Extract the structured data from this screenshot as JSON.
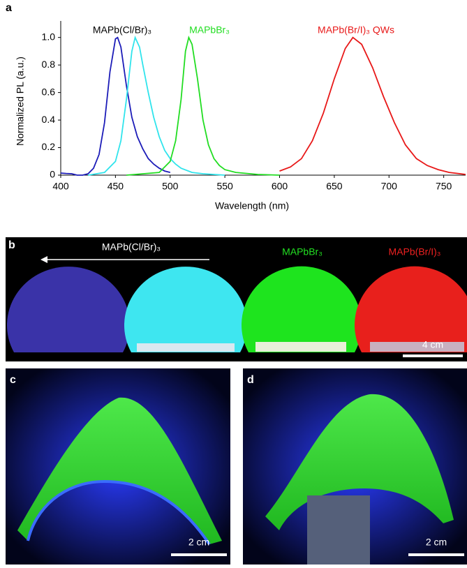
{
  "chart_data": {
    "type": "line",
    "xlabel": "Wavelength (nm)",
    "ylabel": "Normalized PL (a.u.)",
    "xlim": [
      400,
      770
    ],
    "ylim": [
      0,
      1.12
    ],
    "xticks": [
      400,
      450,
      500,
      550,
      600,
      650,
      700,
      750
    ],
    "yticks": [
      0,
      0.2,
      0.4,
      0.6,
      0.8,
      {
        "value": 1,
        "label": "1.0"
      }
    ],
    "annotations": [
      "MAPb(Cl/Br)₃",
      "MAPbBr₃",
      "MAPb(Br/I)₃ QWs"
    ],
    "series": [
      {
        "color": "#1c1cb8",
        "x": [
          400,
          405,
          410,
          415,
          420,
          425,
          430,
          435,
          440,
          445,
          450,
          452,
          455,
          460,
          465,
          470,
          475,
          480,
          485,
          490,
          495,
          500
        ],
        "values": [
          0.015,
          0.012,
          0.01,
          0.0,
          0.0,
          0.01,
          0.05,
          0.15,
          0.38,
          0.75,
          0.99,
          1.0,
          0.93,
          0.65,
          0.42,
          0.28,
          0.19,
          0.12,
          0.08,
          0.05,
          0.03,
          0.02
        ]
      },
      {
        "color": "#30e4ec",
        "x": [
          425,
          440,
          450,
          455,
          460,
          465,
          468,
          472,
          475,
          480,
          485,
          490,
          495,
          500,
          505,
          510,
          520,
          530,
          550
        ],
        "values": [
          0.0,
          0.02,
          0.1,
          0.25,
          0.55,
          0.9,
          1.0,
          0.93,
          0.8,
          0.6,
          0.42,
          0.28,
          0.18,
          0.12,
          0.08,
          0.05,
          0.02,
          0.01,
          0.0
        ]
      },
      {
        "color": "#22dd22",
        "x": [
          460,
          490,
          500,
          505,
          510,
          514,
          517,
          520,
          525,
          530,
          535,
          540,
          545,
          550,
          560,
          580,
          600
        ],
        "values": [
          0.0,
          0.02,
          0.1,
          0.25,
          0.55,
          0.9,
          1.0,
          0.95,
          0.7,
          0.4,
          0.22,
          0.12,
          0.07,
          0.04,
          0.02,
          0.005,
          0.0
        ]
      },
      {
        "color": "#e81818",
        "x": [
          600,
          610,
          620,
          630,
          640,
          650,
          660,
          667,
          675,
          685,
          695,
          705,
          715,
          725,
          735,
          745,
          755,
          765,
          770
        ],
        "values": [
          0.03,
          0.06,
          0.12,
          0.25,
          0.45,
          0.7,
          0.92,
          1.0,
          0.95,
          0.78,
          0.57,
          0.38,
          0.22,
          0.12,
          0.07,
          0.04,
          0.02,
          0.01,
          0.005
        ]
      }
    ]
  },
  "panels": {
    "a": {
      "label": "a"
    },
    "b": {
      "label": "b",
      "arrow_label": "MAPb(Cl/Br)₃",
      "green_label": "MAPbBr₃",
      "red_label": "MAPb(Br/I)₃",
      "scale_bar": "4 cm"
    },
    "c": {
      "label": "c",
      "scale_bar": "2 cm"
    },
    "d": {
      "label": "d",
      "scale_bar": "2 cm"
    }
  }
}
